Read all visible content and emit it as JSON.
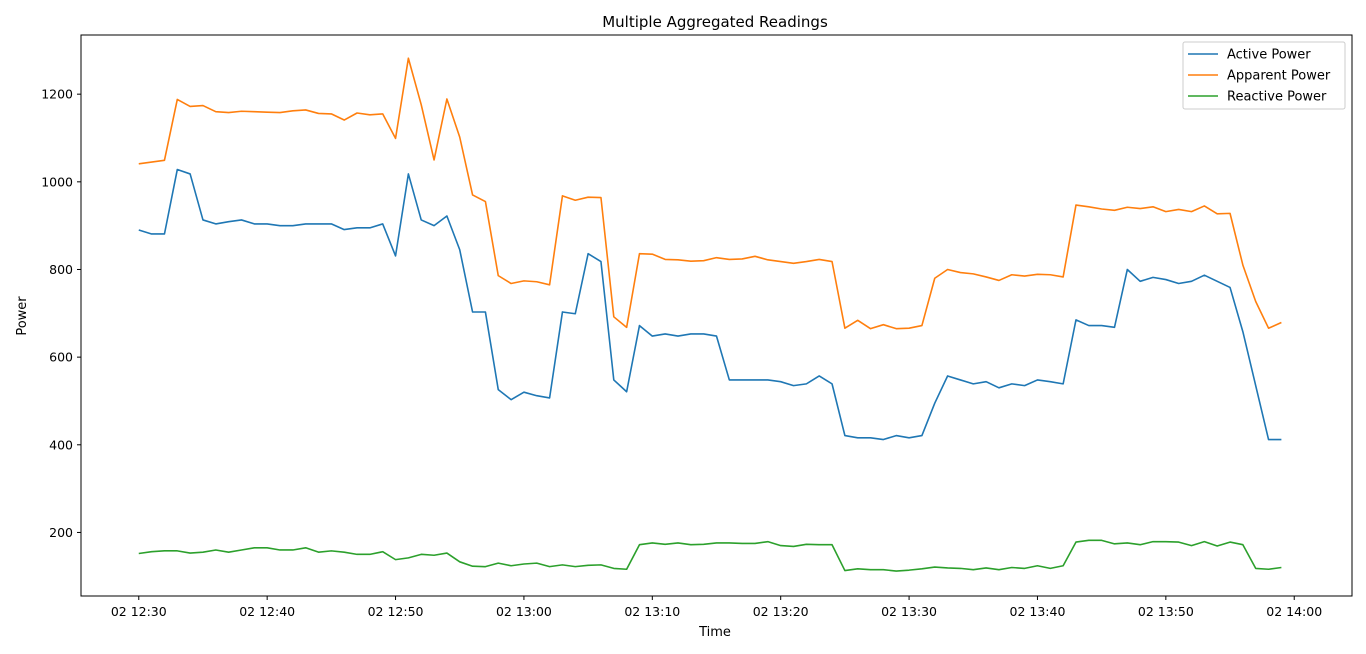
{
  "chart_data": {
    "type": "line",
    "title": "Multiple Aggregated Readings",
    "xlabel": "Time",
    "ylabel": "Power",
    "x_unit": "minute",
    "x": [
      "12:30",
      "12:31",
      "12:32",
      "12:33",
      "12:34",
      "12:35",
      "12:36",
      "12:37",
      "12:38",
      "12:39",
      "12:40",
      "12:41",
      "12:42",
      "12:43",
      "12:44",
      "12:45",
      "12:46",
      "12:47",
      "12:48",
      "12:49",
      "12:50",
      "12:51",
      "12:52",
      "12:53",
      "12:54",
      "12:55",
      "12:56",
      "12:57",
      "12:58",
      "12:59",
      "13:00",
      "13:01",
      "13:02",
      "13:03",
      "13:04",
      "13:05",
      "13:06",
      "13:07",
      "13:08",
      "13:09",
      "13:10",
      "13:11",
      "13:12",
      "13:13",
      "13:14",
      "13:15",
      "13:16",
      "13:17",
      "13:18",
      "13:19",
      "13:20",
      "13:21",
      "13:22",
      "13:23",
      "13:24",
      "13:25",
      "13:26",
      "13:27",
      "13:28",
      "13:29",
      "13:30",
      "13:31",
      "13:32",
      "13:33",
      "13:34",
      "13:35",
      "13:36",
      "13:37",
      "13:38",
      "13:39",
      "13:40",
      "13:41",
      "13:42",
      "13:43",
      "13:44",
      "13:45",
      "13:46",
      "13:47",
      "13:48",
      "13:49",
      "13:50",
      "13:51",
      "13:52",
      "13:53",
      "13:54",
      "13:55",
      "13:56",
      "13:57",
      "13:58",
      "13:59"
    ],
    "xlim": [
      "12:25.5",
      "14:04.5"
    ],
    "xticks": [
      "12:30",
      "12:40",
      "12:50",
      "13:00",
      "13:10",
      "13:20",
      "13:30",
      "13:40",
      "13:50",
      "14:00"
    ],
    "xtick_labels": [
      "02 12:30",
      "02 12:40",
      "02 12:50",
      "02 13:00",
      "02 13:10",
      "02 13:20",
      "02 13:30",
      "02 13:40",
      "02 13:50",
      "02 14:00"
    ],
    "ylim": [
      55,
      1335
    ],
    "yticks": [
      200,
      400,
      600,
      800,
      1000,
      1200
    ],
    "grid": false,
    "legend_position": "top-right",
    "series": [
      {
        "name": "Active Power",
        "color": "#1f77b4",
        "values": [
          890,
          881,
          881,
          1028,
          1018,
          913,
          904,
          909,
          913,
          904,
          904,
          900,
          900,
          904,
          904,
          904,
          891,
          895,
          895,
          904,
          831,
          1018,
          913,
          900,
          922,
          845,
          703,
          703,
          526,
          503,
          520,
          512,
          507,
          703,
          699,
          836,
          818,
          548,
          521,
          672,
          648,
          653,
          648,
          653,
          653,
          648,
          548,
          548,
          548,
          548,
          544,
          535,
          539,
          557,
          539,
          421,
          416,
          416,
          412,
          421,
          416,
          421,
          495,
          557,
          548,
          539,
          544,
          530,
          539,
          535,
          548,
          544,
          539,
          685,
          672,
          672,
          668,
          800,
          773,
          782,
          777,
          768,
          773,
          787,
          773,
          759,
          658,
          535,
          412,
          412
        ]
      },
      {
        "name": "Apparent Power",
        "color": "#ff7f0e",
        "values": [
          1041,
          1045,
          1049,
          1188,
          1172,
          1174,
          1160,
          1158,
          1161,
          1160,
          1159,
          1158,
          1162,
          1164,
          1156,
          1155,
          1141,
          1157,
          1153,
          1155,
          1099,
          1282,
          1176,
          1050,
          1189,
          1102,
          970,
          955,
          786,
          768,
          774,
          772,
          765,
          968,
          958,
          965,
          964,
          692,
          668,
          836,
          835,
          823,
          822,
          819,
          820,
          827,
          823,
          824,
          830,
          822,
          818,
          814,
          818,
          823,
          818,
          666,
          684,
          665,
          674,
          665,
          666,
          672,
          780,
          800,
          793,
          790,
          783,
          775,
          788,
          785,
          789,
          788,
          783,
          947,
          943,
          938,
          935,
          942,
          939,
          943,
          932,
          937,
          932,
          945,
          927,
          928,
          810,
          727,
          666,
          679
        ]
      },
      {
        "name": "Reactive Power",
        "color": "#2ca02c",
        "values": [
          152,
          156,
          158,
          158,
          153,
          155,
          160,
          155,
          160,
          165,
          165,
          160,
          160,
          165,
          155,
          158,
          155,
          150,
          150,
          156,
          138,
          142,
          150,
          148,
          153,
          133,
          123,
          122,
          130,
          124,
          128,
          130,
          122,
          126,
          122,
          125,
          126,
          118,
          116,
          172,
          176,
          173,
          176,
          172,
          173,
          176,
          176,
          175,
          175,
          179,
          170,
          168,
          173,
          172,
          172,
          113,
          117,
          115,
          115,
          112,
          114,
          117,
          121,
          119,
          118,
          115,
          119,
          115,
          120,
          118,
          124,
          118,
          124,
          178,
          182,
          182,
          174,
          176,
          172,
          179,
          179,
          178,
          170,
          179,
          169,
          178,
          172,
          118,
          116,
          120
        ]
      }
    ]
  }
}
